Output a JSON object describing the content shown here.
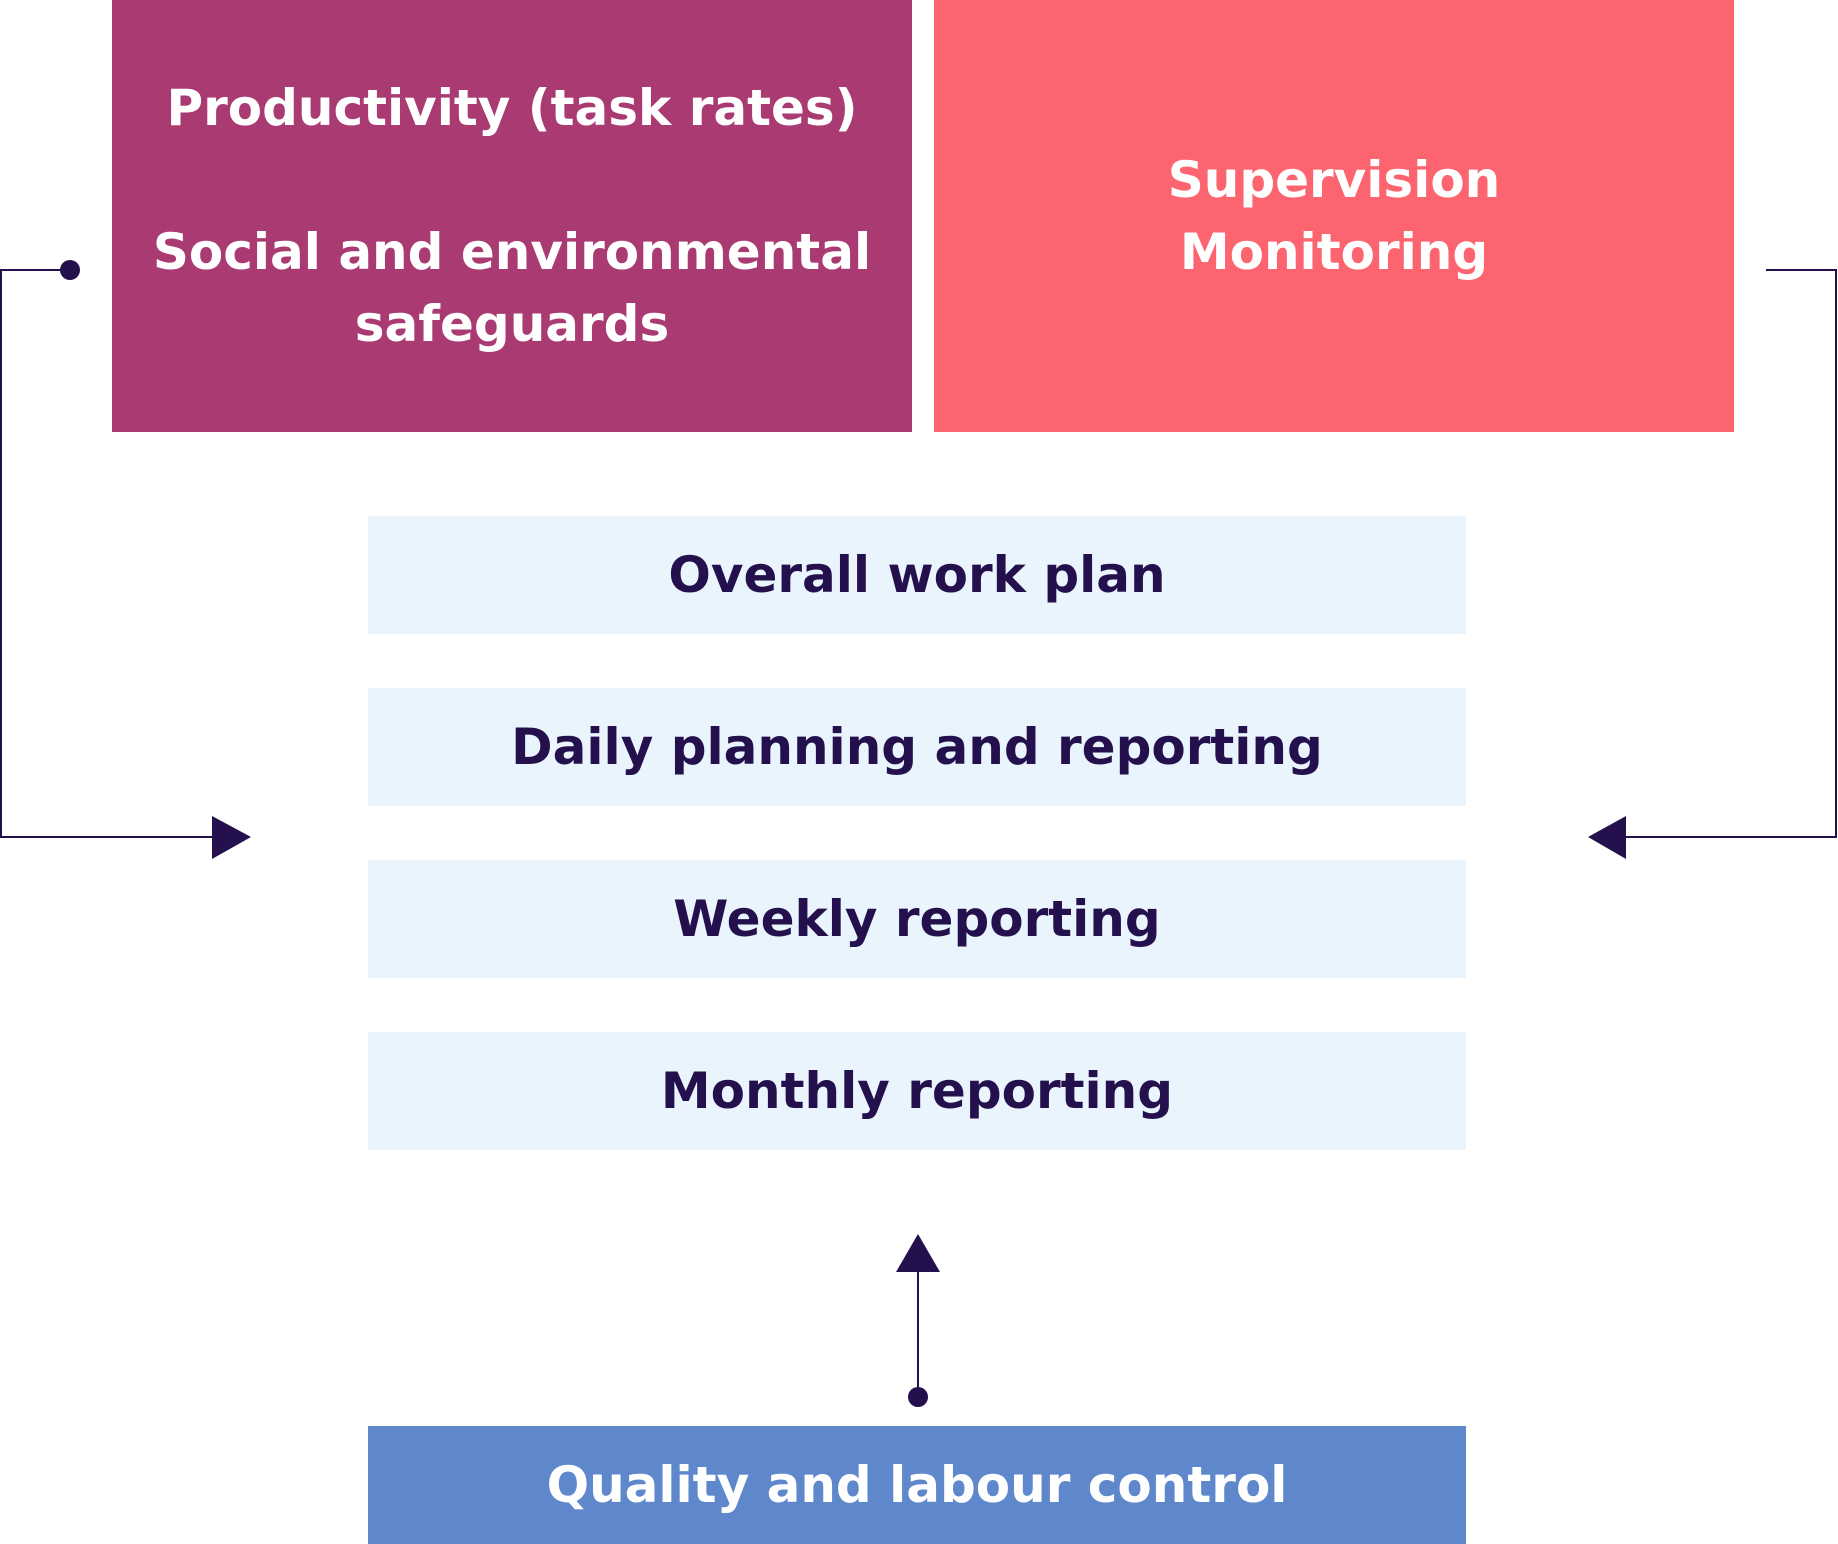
{
  "top_left_box": {
    "line1": "Productivity (task rates)",
    "line2": "Social and environmental",
    "line3": "safeguards",
    "color": "#a93a72"
  },
  "top_right_box": {
    "line1": "Supervision",
    "line2": "Monitoring",
    "color": "#fc6570"
  },
  "stack_items": [
    {
      "label": "Overall work plan"
    },
    {
      "label": "Daily planning and reporting"
    },
    {
      "label": "Weekly reporting"
    },
    {
      "label": "Monthly reporting"
    }
  ],
  "bottom_box": {
    "label": "Quality and labour control",
    "color": "#5f88cc"
  },
  "colors": {
    "stack_fill": "#e9f4fd",
    "dark_text": "#24104c",
    "connector": "#24104c"
  }
}
